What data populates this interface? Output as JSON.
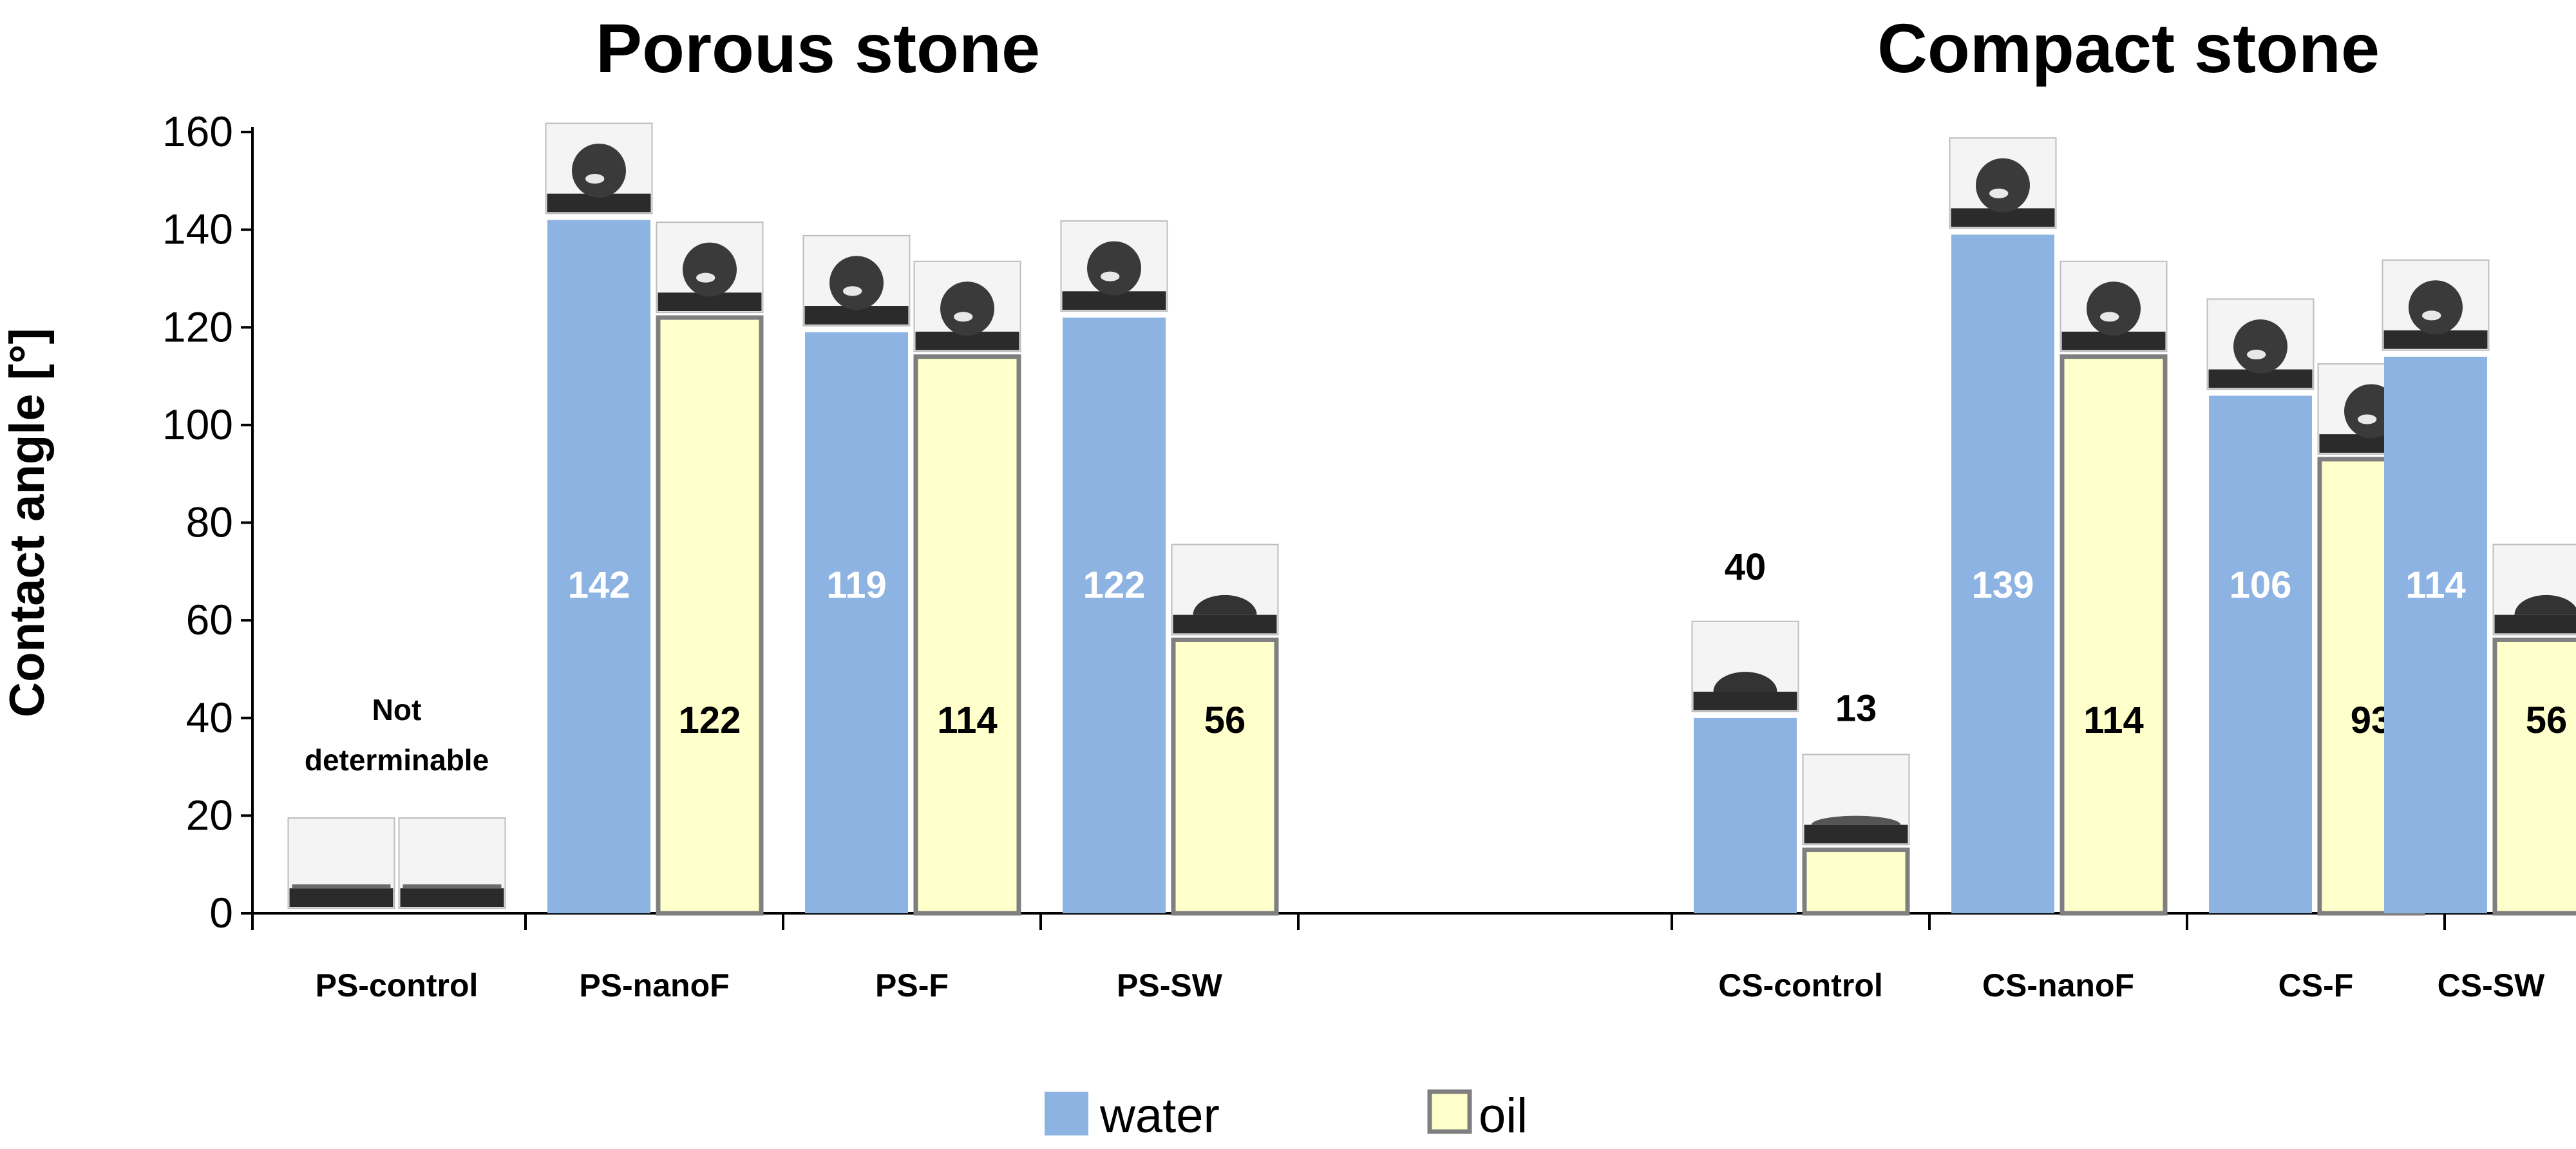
{
  "chart_data": {
    "type": "bar",
    "ylabel": "Contact angle [°]",
    "ylim": [
      0,
      160
    ],
    "yticks": [
      0,
      20,
      40,
      60,
      80,
      100,
      120,
      140,
      160
    ],
    "grid": false,
    "legend_position": "bottom-center",
    "groups": [
      {
        "title": "Porous stone",
        "categories": [
          "PS-control",
          "PS-nanoF",
          "PS-F",
          "PS-SW"
        ]
      },
      {
        "title": "Compact stone",
        "categories": [
          "CS-control",
          "CS-nanoF",
          "CS-F",
          "CS-SW"
        ]
      }
    ],
    "categories": [
      "PS-control",
      "PS-nanoF",
      "PS-F",
      "PS-SW",
      "CS-control",
      "CS-nanoF",
      "CS-F",
      "CS-SW"
    ],
    "series": [
      {
        "name": "water",
        "color": "#8db3e2",
        "values": [
          null,
          142,
          119,
          122,
          40,
          139,
          106,
          114
        ]
      },
      {
        "name": "oil",
        "color": "#ffffcc",
        "edge_color": "#7f7f7f",
        "values": [
          null,
          122,
          114,
          56,
          13,
          114,
          93,
          56
        ]
      }
    ],
    "annotations": [
      {
        "category": "PS-control",
        "text_lines": [
          "Not",
          "determinable"
        ]
      }
    ],
    "droplet_insets": "photo of droplet above each bar"
  }
}
